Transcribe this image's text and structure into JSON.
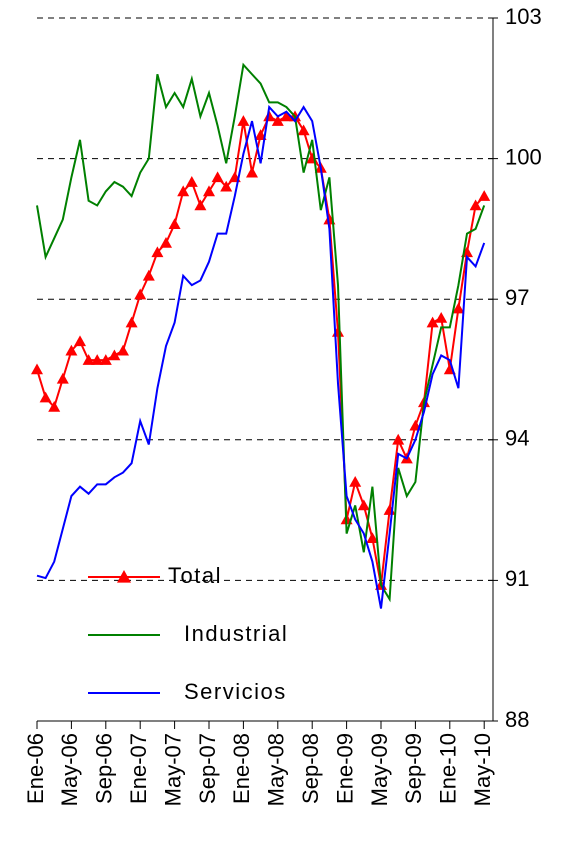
{
  "chart_data": {
    "type": "line",
    "categories": [
      "Ene-06",
      null,
      null,
      null,
      "May-06",
      null,
      null,
      null,
      "Sep-06",
      null,
      null,
      null,
      "Ene-07",
      null,
      null,
      null,
      "May-07",
      null,
      null,
      null,
      "Sep-07",
      null,
      null,
      null,
      "Ene-08",
      null,
      null,
      null,
      "May-08",
      null,
      null,
      null,
      "Sep-08",
      null,
      null,
      null,
      "Ene-09",
      null,
      null,
      null,
      "May-09",
      null,
      null,
      null,
      "Sep-09",
      null,
      null,
      null,
      "Ene-10",
      null,
      null,
      null,
      "May-10"
    ],
    "series": [
      {
        "name": "Total",
        "color": "#ff0000",
        "marker": "triangle",
        "values": [
          95.5,
          94.9,
          94.7,
          95.3,
          95.9,
          96.1,
          95.7,
          95.7,
          95.7,
          95.8,
          95.9,
          96.5,
          97.1,
          97.5,
          98.0,
          98.2,
          98.6,
          99.3,
          99.5,
          99.0,
          99.3,
          99.6,
          99.4,
          99.6,
          100.8,
          99.7,
          100.5,
          100.9,
          100.8,
          100.9,
          100.9,
          100.6,
          100.0,
          99.8,
          98.7,
          96.3,
          92.3,
          93.1,
          92.6,
          91.9,
          90.9,
          92.5,
          94.0,
          93.6,
          94.3,
          94.8,
          96.5,
          96.6,
          95.5,
          96.8,
          98.0,
          99.0,
          99.2
        ]
      },
      {
        "name": "Industrial",
        "color": "#008000",
        "values": [
          99.0,
          97.9,
          98.3,
          98.7,
          99.6,
          100.4,
          99.1,
          99.0,
          99.3,
          99.5,
          99.4,
          99.2,
          99.7,
          100.0,
          101.8,
          101.1,
          101.4,
          101.1,
          101.7,
          100.9,
          101.4,
          100.7,
          99.9,
          100.9,
          102.0,
          101.8,
          101.6,
          101.2,
          101.2,
          101.1,
          100.9,
          99.7,
          100.4,
          98.9,
          99.6,
          97.3,
          92.0,
          92.6,
          91.6,
          93.0,
          90.9,
          90.6,
          93.4,
          92.8,
          93.1,
          94.8,
          95.6,
          96.4,
          96.4,
          97.3,
          98.4,
          98.5,
          99.0
        ]
      },
      {
        "name": "Servicios",
        "color": "#0000ff",
        "values": [
          91.1,
          91.05,
          91.4,
          92.1,
          92.8,
          93.0,
          92.85,
          93.05,
          93.05,
          93.2,
          93.3,
          93.5,
          94.4,
          93.9,
          95.1,
          96.0,
          96.5,
          97.5,
          97.3,
          97.4,
          97.8,
          98.4,
          98.4,
          99.2,
          100.1,
          100.8,
          99.9,
          101.1,
          100.9,
          101.0,
          100.8,
          101.1,
          100.8,
          99.8,
          98.5,
          95.2,
          92.8,
          92.3,
          92.0,
          91.4,
          90.4,
          92.0,
          93.7,
          93.6,
          94.0,
          94.6,
          95.4,
          95.8,
          95.7,
          95.1,
          97.9,
          97.7,
          98.2
        ]
      }
    ],
    "ylim": [
      88,
      103
    ],
    "yticks": [
      88,
      91,
      94,
      97,
      100,
      103
    ],
    "grid": true
  }
}
